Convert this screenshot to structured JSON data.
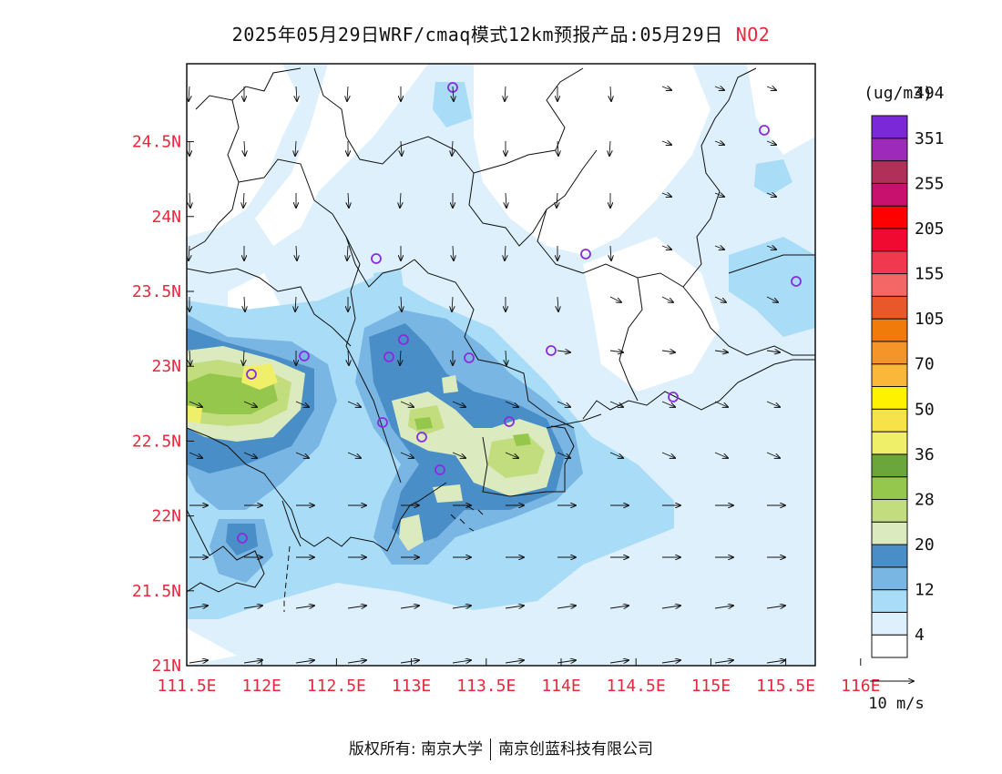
{
  "header": {
    "title": "2025年05月29日WRF/cmaq模式12km预报产品:05月29日",
    "species": "NO2"
  },
  "legend": {
    "unit": "(ug/m3)",
    "labels": [
      "4",
      "12",
      "20",
      "28",
      "36",
      "50",
      "70",
      "105",
      "155",
      "205",
      "255",
      "351",
      "494"
    ],
    "colors": [
      "#ffffff",
      "#ddf0fb",
      "#a8dcf7",
      "#7ab6e3",
      "#4a8ec7",
      "#dcebbf",
      "#c1dd7d",
      "#95c74c",
      "#6aa63a",
      "#f0ef6a",
      "#f7e24a",
      "#fff200",
      "#fbb73a",
      "#f49529",
      "#f07a0a",
      "#e8582a",
      "#f46767",
      "#f0384e",
      "#f00a32",
      "#ff0000",
      "#c8106e",
      "#b0305a",
      "#9d2ab8",
      "#7b28d8"
    ]
  },
  "axes": {
    "x_ticks": [
      "111.5E",
      "112E",
      "112.5E",
      "113E",
      "113.5E",
      "114E",
      "114.5E",
      "115E",
      "115.5E",
      "116E"
    ],
    "y_ticks": [
      "21N",
      "21.5N",
      "22N",
      "22.5N",
      "23N",
      "23.5N",
      "24N",
      "24.5N"
    ],
    "tick_color": "#e8283c"
  },
  "wind": {
    "reference_label": "10 m/s"
  },
  "footer": {
    "copyright": "版权所有: 南京大学",
    "company": "南京创蓝科技有限公司"
  }
}
